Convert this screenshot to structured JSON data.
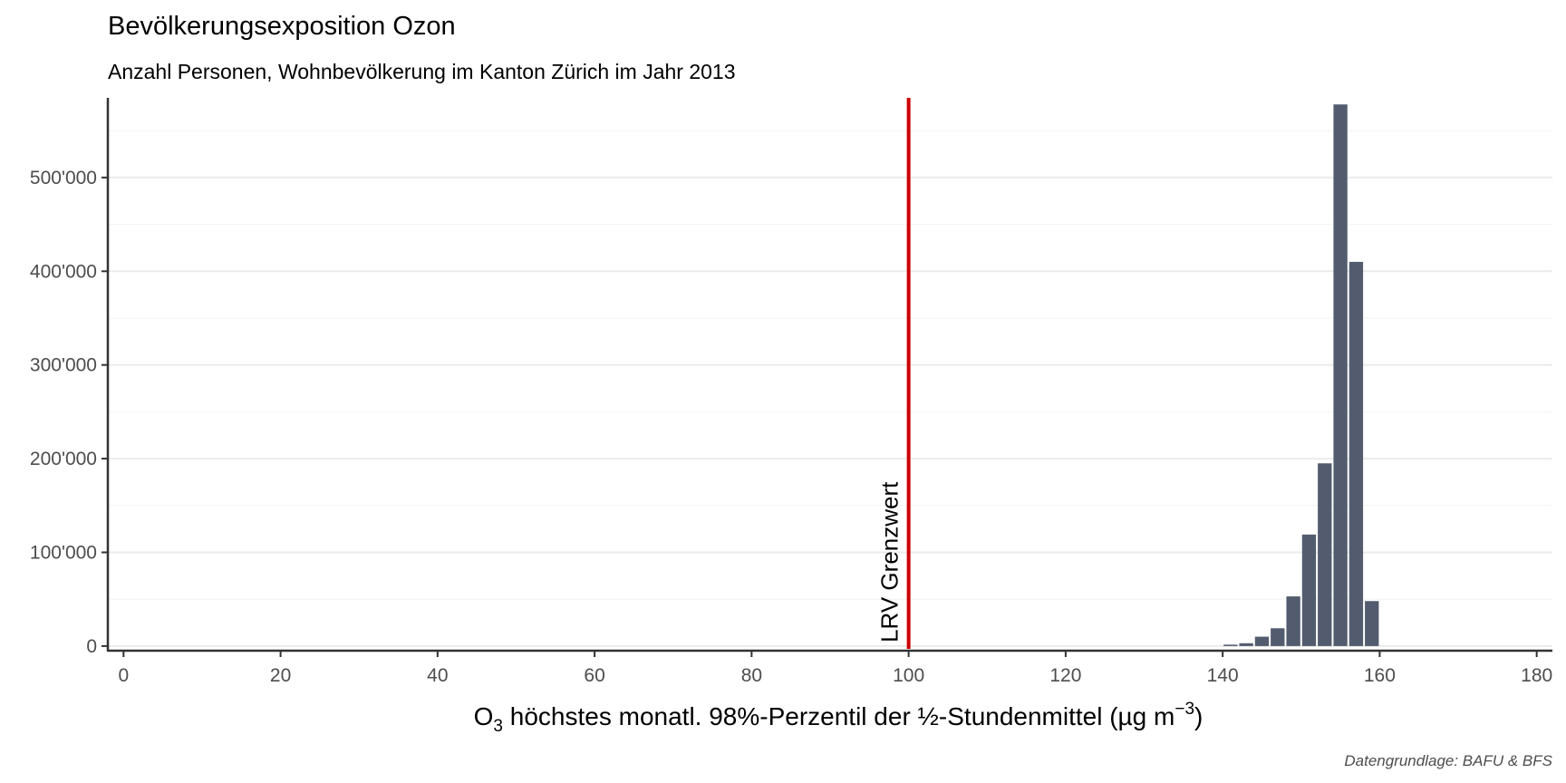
{
  "title": "Bevölkerungsexposition Ozon",
  "subtitle": "Anzahl Personen, Wohnbevölkerung im Kanton Zürich im Jahr 2013",
  "caption": "Datengrundlage: BAFU & BFS",
  "colors": {
    "bars": "#525c6e",
    "threshold": "#cc0000",
    "grid": "#ebebeb",
    "axis": "#333333"
  },
  "chart_data": {
    "type": "bar",
    "title": "Bevölkerungsexposition Ozon",
    "subtitle": "Anzahl Personen, Wohnbevölkerung im Kanton Zürich im Jahr 2013",
    "xlabel": {
      "pre": "O",
      "sub": "3",
      "main": " höchstes monatl. 98%-Perzentil der ½-Stundenmittel (µg m",
      "sup": "−3",
      "post": ")"
    },
    "ylabel": "",
    "xlim": [
      -2,
      182
    ],
    "ylim": [
      -3000,
      585000
    ],
    "x_ticks": [
      0,
      20,
      40,
      60,
      80,
      100,
      120,
      140,
      160,
      180
    ],
    "y_ticks": [
      0,
      100000,
      200000,
      300000,
      400000,
      500000
    ],
    "y_tick_labels": [
      "0",
      "100'000",
      "200'000",
      "300'000",
      "400'000",
      "500'000"
    ],
    "grid": true,
    "bin_width": 2,
    "bars": [
      {
        "x": 141,
        "value": 1500
      },
      {
        "x": 143,
        "value": 3000
      },
      {
        "x": 145,
        "value": 10000
      },
      {
        "x": 147,
        "value": 19000
      },
      {
        "x": 149,
        "value": 53000
      },
      {
        "x": 151,
        "value": 119000
      },
      {
        "x": 153,
        "value": 195000
      },
      {
        "x": 155,
        "value": 578000
      },
      {
        "x": 157,
        "value": 410000
      },
      {
        "x": 159,
        "value": 48000
      }
    ],
    "threshold": {
      "x": 100,
      "label": "LRV Grenzwert"
    }
  }
}
